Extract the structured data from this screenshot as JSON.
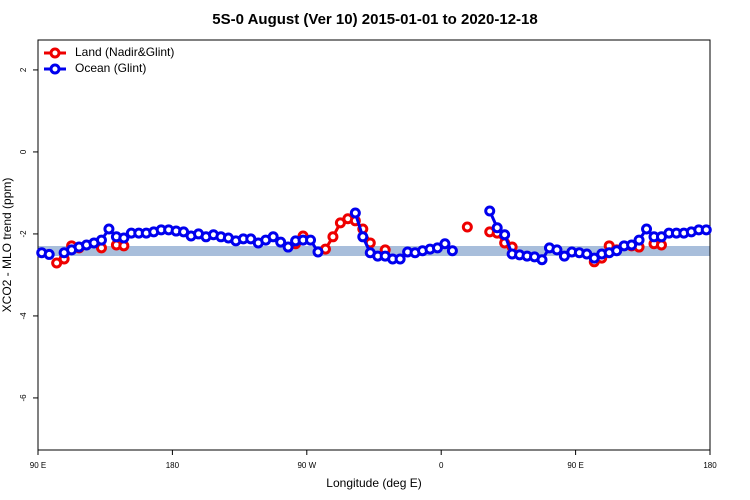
{
  "chart_data": {
    "type": "line",
    "title": "5S-0 August (Ver 10)   2015-01-01 to 2020-12-18",
    "x_label": "Longitude (deg E)",
    "y_label": "XCO2 - MLO trend (ppm)",
    "xlim": [
      90,
      540
    ],
    "xticks": [
      {
        "value": 90,
        "label": "90 E"
      },
      {
        "value": 180,
        "label": "180"
      },
      {
        "value": 270,
        "label": "90 W"
      },
      {
        "value": 360,
        "label": "0"
      },
      {
        "value": 450,
        "label": "90 E"
      },
      {
        "value": 540,
        "label": "180"
      }
    ],
    "ylim": [
      -7.27,
      2.73
    ],
    "yticks": [
      2,
      0,
      -2,
      -4,
      -6
    ],
    "legend": "top-left",
    "x": [
      92.5,
      97.5,
      102.5,
      107.5,
      112.5,
      117.5,
      122.5,
      127.5,
      132.5,
      137.5,
      142.5,
      147.5,
      152.5,
      157.5,
      162.5,
      167.5,
      172.5,
      177.5,
      182.5,
      187.5,
      192.5,
      197.5,
      202.5,
      207.5,
      212.5,
      217.5,
      222.5,
      227.5,
      232.5,
      237.5,
      242.5,
      247.5,
      252.5,
      257.5,
      262.5,
      267.5,
      272.5,
      277.5,
      282.5,
      287.5,
      292.5,
      297.5,
      302.5,
      307.5,
      312.5,
      317.5,
      322.5,
      327.5,
      332.5,
      337.5,
      342.5,
      347.5,
      352.5,
      357.5,
      362.5,
      367.5,
      372.5,
      377.5,
      382.5,
      387.5,
      392.5,
      397.5,
      402.5,
      407.5,
      412.5,
      417.5,
      422.5,
      427.5,
      432.5,
      437.5,
      442.5,
      447.5,
      452.5,
      457.5,
      462.5,
      467.5,
      472.5,
      477.5,
      482.5,
      487.5,
      492.5,
      497.5,
      502.5,
      507.5,
      512.5,
      517.5,
      522.5,
      527.5,
      532.5,
      537.5
    ],
    "series": [
      {
        "name": "Land (Nadir&Glint)",
        "color": "#ee0000",
        "values": [
          null,
          null,
          -2.71,
          -2.61,
          -2.29,
          -2.34,
          null,
          null,
          -2.34,
          null,
          -2.27,
          -2.29,
          null,
          null,
          null,
          null,
          null,
          null,
          null,
          null,
          null,
          null,
          null,
          null,
          null,
          null,
          null,
          null,
          null,
          null,
          null,
          null,
          null,
          null,
          -2.24,
          -2.05,
          null,
          null,
          -2.37,
          -2.07,
          -1.73,
          -1.63,
          -1.68,
          -1.88,
          -2.22,
          null,
          -2.39,
          null,
          null,
          null,
          null,
          null,
          null,
          null,
          null,
          null,
          null,
          -1.83,
          null,
          null,
          -1.95,
          -1.98,
          -2.22,
          -2.32,
          null,
          null,
          null,
          null,
          null,
          null,
          null,
          null,
          null,
          null,
          -2.68,
          -2.59,
          -2.29,
          -2.39,
          null,
          -2.29,
          -2.32,
          null,
          -2.24,
          -2.27,
          null,
          null,
          null,
          null,
          null,
          null
        ]
      },
      {
        "name": "Ocean (Glint)",
        "color": "#0000ee",
        "values": [
          -2.46,
          -2.5,
          null,
          -2.46,
          -2.39,
          -2.32,
          -2.27,
          -2.22,
          -2.15,
          -1.88,
          -2.07,
          -2.1,
          -1.98,
          -1.98,
          -1.98,
          -1.95,
          -1.9,
          -1.9,
          -1.93,
          -1.95,
          -2.05,
          -2.0,
          -2.07,
          -2.02,
          -2.07,
          -2.1,
          -2.17,
          -2.12,
          -2.12,
          -2.22,
          -2.15,
          -2.07,
          -2.2,
          -2.32,
          -2.17,
          -2.15,
          -2.15,
          -2.44,
          null,
          null,
          null,
          null,
          -1.49,
          -2.07,
          -2.46,
          -2.54,
          -2.54,
          -2.61,
          -2.61,
          -2.44,
          -2.46,
          -2.41,
          -2.37,
          -2.34,
          -2.24,
          -2.41,
          null,
          null,
          null,
          null,
          -1.44,
          -1.85,
          -2.02,
          -2.49,
          -2.51,
          -2.54,
          -2.56,
          -2.63,
          -2.34,
          -2.39,
          -2.54,
          -2.44,
          -2.46,
          -2.49,
          -2.59,
          -2.49,
          -2.46,
          -2.41,
          -2.29,
          -2.27,
          -2.15,
          -1.88,
          -2.07,
          -2.07,
          -1.98,
          -1.98,
          -1.98,
          -1.95,
          -1.9,
          -1.9
        ]
      }
    ]
  }
}
